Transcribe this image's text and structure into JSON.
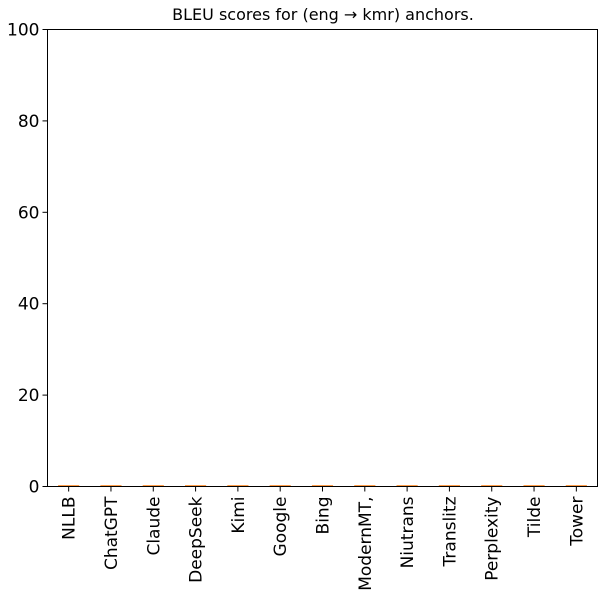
{
  "chart_data": {
    "type": "box",
    "title": "BLEU scores for (eng → kmr) anchors.",
    "xlabel": "",
    "ylabel": "",
    "ylim": [
      0,
      100
    ],
    "yticks": [
      0,
      20,
      40,
      60,
      80,
      100
    ],
    "categories": [
      "NLLB",
      "ChatGPT",
      "Claude",
      "DeepSeek",
      "Kimi",
      "Google",
      "Bing",
      "ModernMT,",
      "Niutrans",
      "Translitz",
      "Perplexity",
      "Tilde",
      "Tower"
    ],
    "values": [
      0,
      0,
      0,
      0,
      0,
      0,
      0,
      0,
      0,
      0,
      0,
      0,
      0
    ],
    "grid": false,
    "legend": "none",
    "colors": {
      "median": "#ff7f0e",
      "box": "#000000",
      "axes": "#000000"
    }
  }
}
